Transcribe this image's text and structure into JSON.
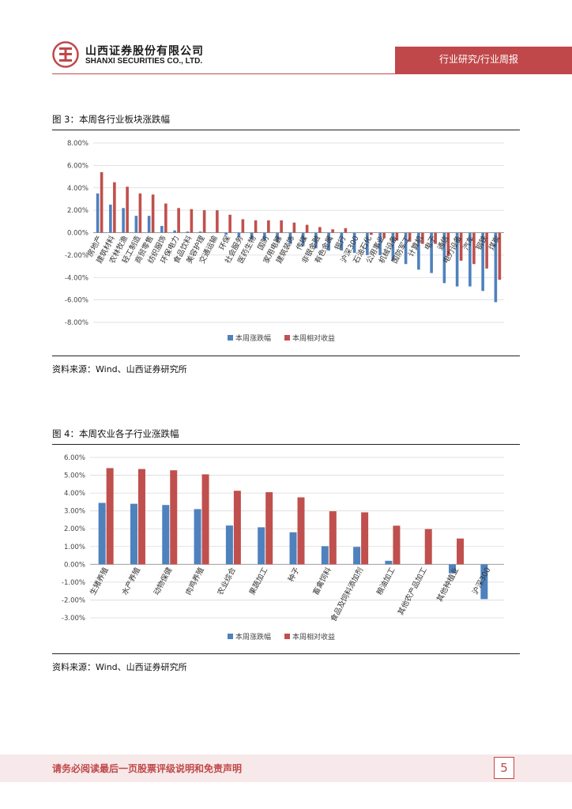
{
  "header": {
    "company_cn": "山西证券股份有限公司",
    "company_en": "SHANXI SECURITIES CO., LTD.",
    "report_type": "行业研究/行业周报",
    "accent": "#c0484a"
  },
  "figure3": {
    "title": "图 3：本周各行业板块涨跌幅",
    "source": "资料来源：Wind、山西证券研究所"
  },
  "figure4": {
    "title": "图 4：本周农业各子行业涨跌幅",
    "source": "资料来源：Wind、山西证券研究所"
  },
  "footer": {
    "disclaimer": "请务必阅读最后一页股票评级说明和免责声明",
    "page": "5"
  },
  "chart_data": [
    {
      "type": "bar",
      "categories": [
        "房地产",
        "建筑材料",
        "农林牧渔",
        "轻工制造",
        "商贸零售",
        "纺织服饰",
        "环保电力",
        "食品饮料",
        "美容护理",
        "交通运输",
        "环保",
        "社会服务",
        "医药生物",
        "国防",
        "家用电器",
        "建筑装饰",
        "传媒",
        "非银金融",
        "有色金属",
        "银行",
        "沪深300",
        "石油石化",
        "公用事业",
        "机械设备",
        "国防军工",
        "计算机",
        "电子",
        "通信",
        "电力设备",
        "汽车",
        "钢铁",
        "煤炭"
      ],
      "series": [
        {
          "name": "本周涨跌幅",
          "color": "#4f81bd",
          "values": [
            3.5,
            2.5,
            2.2,
            1.5,
            1.5,
            0.6,
            0.2,
            0.1,
            0.1,
            0.0,
            -0.2,
            -0.4,
            -0.6,
            -0.7,
            -0.8,
            -1.0,
            -1.2,
            -1.4,
            -1.6,
            -1.6,
            -1.8,
            -2.0,
            -2.0,
            -2.5,
            -2.8,
            -3.3,
            -3.6,
            -4.5,
            -4.8,
            -4.8,
            -5.2,
            -6.2
          ]
        },
        {
          "name": "本周相对收益",
          "color": "#c0504d",
          "values": [
            5.4,
            4.5,
            4.1,
            3.5,
            3.4,
            2.6,
            2.2,
            2.1,
            2.0,
            2.0,
            1.6,
            1.2,
            1.1,
            1.1,
            1.1,
            0.9,
            0.7,
            0.5,
            0.3,
            0.4,
            0.0,
            -0.2,
            -0.5,
            -0.7,
            -0.8,
            -1.0,
            -1.0,
            -2.1,
            -2.5,
            -2.8,
            -3.2,
            -4.2
          ]
        }
      ],
      "yticks": [
        "8.00%",
        "6.00%",
        "4.00%",
        "2.00%",
        "0.00%",
        "-2.00%",
        "-4.00%",
        "-6.00%",
        "-8.00%"
      ],
      "ylim": [
        -8,
        8
      ],
      "legend": "bottom"
    },
    {
      "type": "bar",
      "categories": [
        "生猪养殖",
        "水产养殖",
        "动物保健",
        "肉鸡养殖",
        "农业综合",
        "果蔬加工",
        "种子",
        "畜禽饲料",
        "食品及饲料添加剂",
        "粮油加工",
        "其他农产品加工",
        "其他种植业",
        "沪深300"
      ],
      "series": [
        {
          "name": "本周涨跌幅",
          "color": "#4f81bd",
          "values": [
            3.45,
            3.4,
            3.33,
            3.1,
            2.18,
            2.08,
            1.8,
            1.02,
            0.98,
            0.2,
            0.0,
            -0.5,
            -1.95
          ]
        },
        {
          "name": "本周相对收益",
          "color": "#c0504d",
          "values": [
            5.4,
            5.35,
            5.28,
            5.05,
            4.13,
            4.05,
            3.76,
            2.98,
            2.92,
            2.17,
            1.98,
            1.45,
            0.0
          ]
        }
      ],
      "yticks": [
        "6.00%",
        "5.00%",
        "4.00%",
        "3.00%",
        "2.00%",
        "1.00%",
        "0.00%",
        "-1.00%",
        "-2.00%",
        "-3.00%"
      ],
      "ylim": [
        -3,
        6
      ],
      "legend": "bottom"
    }
  ]
}
